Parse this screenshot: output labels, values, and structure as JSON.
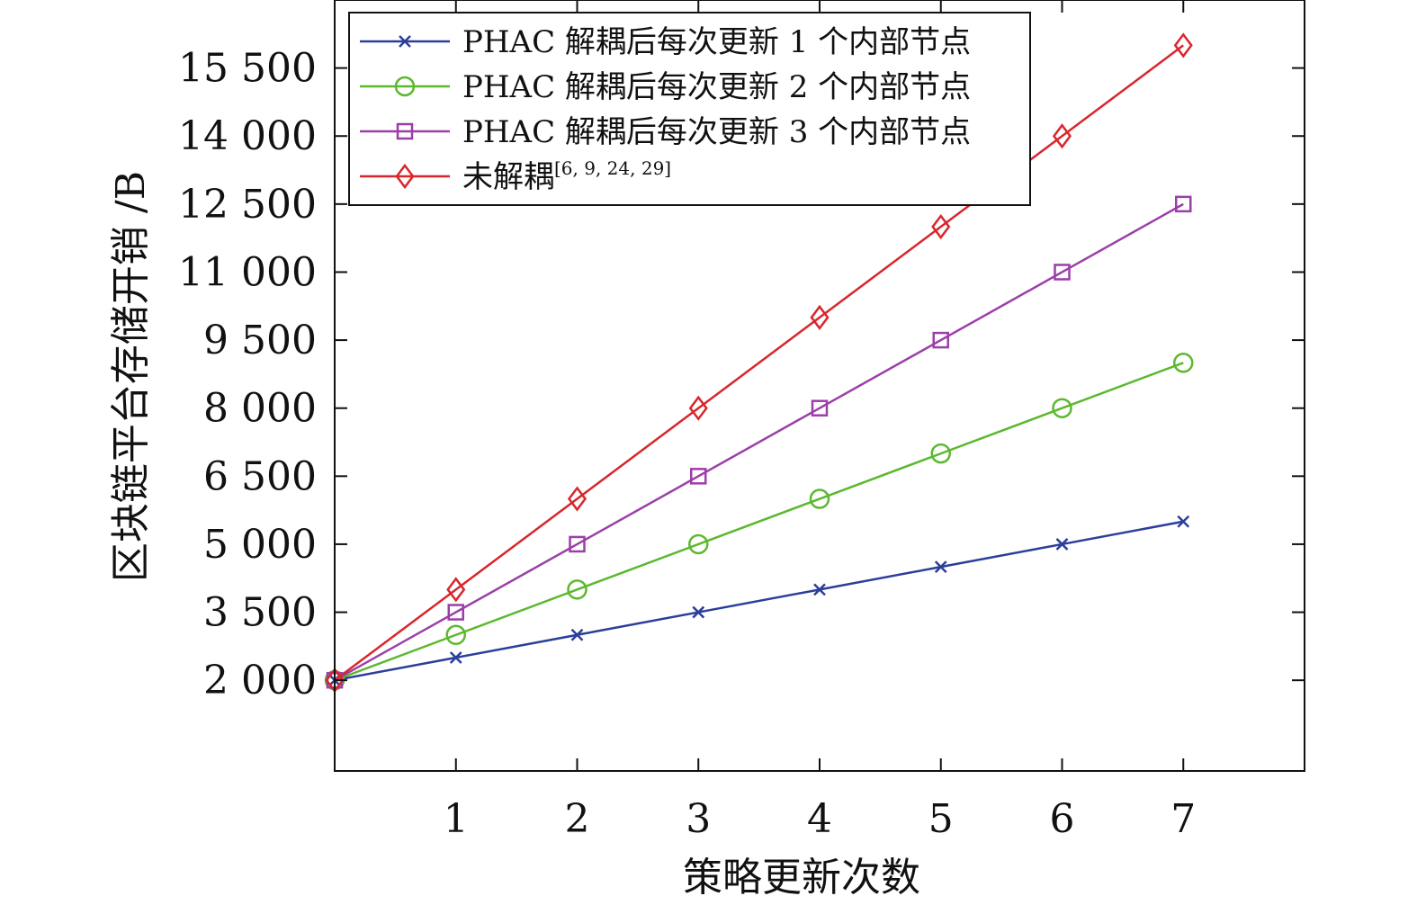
{
  "chart_data": {
    "type": "line",
    "title": "",
    "xlabel": "策略更新次数",
    "ylabel": "区块链平台存储开销 /B",
    "xlim": [
      0,
      8
    ],
    "ylim": [
      0,
      17000
    ],
    "x_ticks": [
      1,
      2,
      3,
      4,
      5,
      6,
      7
    ],
    "y_ticks": [
      2000,
      3500,
      5000,
      6500,
      8000,
      9500,
      11000,
      12500,
      14000,
      15500
    ],
    "x_tick_labels": [
      "1",
      "2",
      "3",
      "4",
      "5",
      "6",
      "7"
    ],
    "y_tick_labels": [
      "2 000",
      "3 500",
      "5 000",
      "6 500",
      "8 000",
      "9 500",
      "11 000",
      "12 500",
      "14 000",
      "15 500"
    ],
    "x": [
      0,
      1,
      2,
      3,
      4,
      5,
      6,
      7
    ],
    "grid": false,
    "legend_position": "top-left",
    "series": [
      {
        "name": "PHAC 解耦后每次更新 1 个内部节点",
        "name_sup": "",
        "color": "#2b3f9a",
        "marker": "x",
        "values": [
          2000,
          2500,
          3000,
          3500,
          4000,
          4500,
          5000,
          5500
        ]
      },
      {
        "name": "PHAC 解耦后每次更新 2 个内部节点",
        "name_sup": "",
        "color": "#5cb82e",
        "marker": "circle",
        "values": [
          2000,
          3000,
          4000,
          5000,
          6000,
          7000,
          8000,
          9000
        ]
      },
      {
        "name": "PHAC 解耦后每次更新 3 个内部节点",
        "name_sup": "",
        "color": "#9b3fa8",
        "marker": "square",
        "values": [
          2000,
          3500,
          5000,
          6500,
          8000,
          9500,
          11000,
          12500
        ]
      },
      {
        "name": "未解耦",
        "name_sup": "[6, 9, 24, 29]",
        "color": "#d9262c",
        "marker": "diamond",
        "values": [
          2000,
          4000,
          6000,
          8000,
          10000,
          12000,
          14000,
          16000
        ]
      }
    ]
  }
}
